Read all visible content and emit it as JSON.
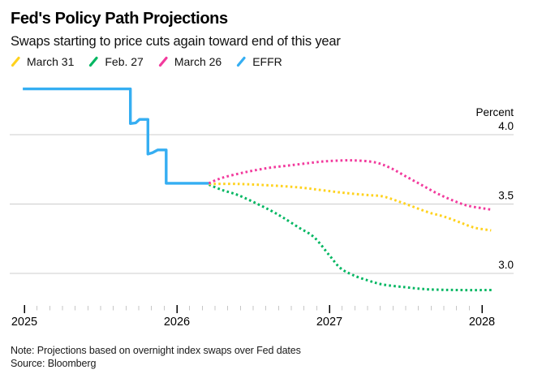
{
  "header": {
    "title": "Fed's Policy Path Projections",
    "subtitle": "Swaps starting to price cuts again toward end of this year"
  },
  "legend": {
    "items": [
      {
        "label": "March 31",
        "color": "#ffd21e"
      },
      {
        "label": "Feb. 27",
        "color": "#00b661"
      },
      {
        "label": "March 26",
        "color": "#f23a9d"
      },
      {
        "label": "EFFR",
        "color": "#35aef2"
      }
    ]
  },
  "footer": {
    "note": "Note: Projections based on overnight index swaps over Fed dates",
    "source": "Source: Bloomberg"
  },
  "chart_data": {
    "type": "line",
    "title": "Fed's Policy Path Projections",
    "subtitle": "Swaps starting to price cuts again toward end of this year",
    "ylabel": "Percent",
    "xlabel": "",
    "y_tick_values": [
      4.0,
      3.5,
      3.0
    ],
    "x_ticks": [
      2025,
      2026,
      2027,
      2028
    ],
    "x_minor_ticks_per_year": 12,
    "x_range": [
      2025,
      2028.1
    ],
    "y_range_shown": [
      2.85,
      4.35
    ],
    "grid": "horizontal-only",
    "legend_position": "top-left",
    "colors": {
      "grid": "#cdcdcd",
      "minor_tick": "#c6c6c6",
      "major_tick": "#000000",
      "axis_text": "#000000"
    },
    "series": [
      {
        "name": "EFFR",
        "color": "#35aef2",
        "style": "solid",
        "shape": "step",
        "points": [
          [
            2024.99,
            4.33
          ],
          [
            2025.695,
            4.33
          ],
          [
            2025.695,
            4.08
          ],
          [
            2025.73,
            4.085
          ],
          [
            2025.755,
            4.11
          ],
          [
            2025.81,
            4.11
          ],
          [
            2025.81,
            3.86
          ],
          [
            2025.84,
            3.87
          ],
          [
            2025.875,
            3.89
          ],
          [
            2025.93,
            3.89
          ],
          [
            2025.93,
            3.65
          ],
          [
            2026.21,
            3.65
          ]
        ]
      },
      {
        "name": "Feb. 27",
        "color": "#00b661",
        "style": "dotted",
        "shape": "smooth",
        "points": [
          [
            2026.21,
            3.64
          ],
          [
            2026.3,
            3.6
          ],
          [
            2026.4,
            3.565
          ],
          [
            2026.53,
            3.5
          ],
          [
            2026.62,
            3.45
          ],
          [
            2026.7,
            3.4
          ],
          [
            2026.8,
            3.33
          ],
          [
            2026.9,
            3.26
          ],
          [
            2027.0,
            3.13
          ],
          [
            2027.07,
            3.04
          ],
          [
            2027.15,
            2.99
          ],
          [
            2027.25,
            2.95
          ],
          [
            2027.35,
            2.92
          ],
          [
            2027.5,
            2.9
          ],
          [
            2027.65,
            2.885
          ],
          [
            2027.85,
            2.88
          ],
          [
            2028.07,
            2.88
          ]
        ]
      },
      {
        "name": "March 31",
        "color": "#ffd21e",
        "style": "dotted",
        "shape": "smooth",
        "points": [
          [
            2026.21,
            3.645
          ],
          [
            2026.4,
            3.645
          ],
          [
            2026.6,
            3.635
          ],
          [
            2026.8,
            3.62
          ],
          [
            2026.95,
            3.6
          ],
          [
            2027.1,
            3.58
          ],
          [
            2027.25,
            3.565
          ],
          [
            2027.35,
            3.555
          ],
          [
            2027.45,
            3.52
          ],
          [
            2027.55,
            3.48
          ],
          [
            2027.65,
            3.44
          ],
          [
            2027.75,
            3.41
          ],
          [
            2027.85,
            3.37
          ],
          [
            2027.95,
            3.33
          ],
          [
            2028.06,
            3.31
          ]
        ]
      },
      {
        "name": "March 26",
        "color": "#f23a9d",
        "style": "dotted",
        "shape": "smooth",
        "points": [
          [
            2026.21,
            3.65
          ],
          [
            2026.3,
            3.69
          ],
          [
            2026.45,
            3.73
          ],
          [
            2026.6,
            3.76
          ],
          [
            2026.75,
            3.78
          ],
          [
            2026.9,
            3.8
          ],
          [
            2027.0,
            3.81
          ],
          [
            2027.15,
            3.815
          ],
          [
            2027.3,
            3.8
          ],
          [
            2027.4,
            3.76
          ],
          [
            2027.5,
            3.7
          ],
          [
            2027.6,
            3.64
          ],
          [
            2027.7,
            3.58
          ],
          [
            2027.8,
            3.53
          ],
          [
            2027.9,
            3.49
          ],
          [
            2028.0,
            3.47
          ],
          [
            2028.06,
            3.46
          ]
        ]
      }
    ]
  }
}
